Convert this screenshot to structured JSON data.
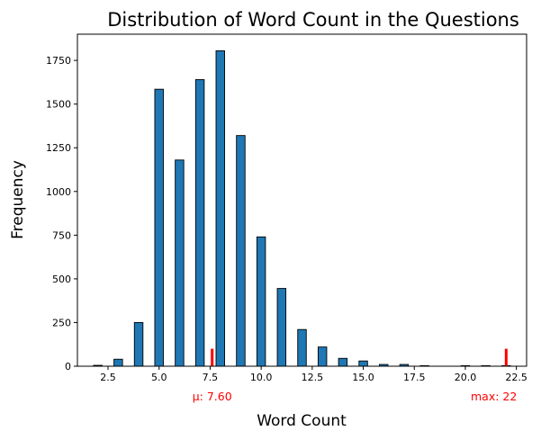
{
  "chart_data": {
    "type": "bar",
    "title": "Distribution of Word Count in the Questions",
    "xlabel": "Word Count",
    "ylabel": "Frequency",
    "xlim": [
      1.0,
      23.0
    ],
    "ylim": [
      0,
      1900
    ],
    "xticks": [
      2.5,
      5.0,
      7.5,
      10.0,
      12.5,
      15.0,
      17.5,
      20.0,
      22.5
    ],
    "xtick_labels": [
      "2.5",
      "5.0",
      "7.5",
      "10.0",
      "12.5",
      "15.0",
      "17.5",
      "20.0",
      "22.5"
    ],
    "yticks": [
      0,
      250,
      500,
      750,
      1000,
      1250,
      1500,
      1750
    ],
    "ytick_labels": [
      "0",
      "250",
      "500",
      "750",
      "1000",
      "1250",
      "1500",
      "1750"
    ],
    "bar_width": 0.42,
    "x": [
      2,
      3,
      4,
      5,
      6,
      7,
      8,
      9,
      10,
      11,
      12,
      13,
      14,
      15,
      16,
      17,
      18,
      20,
      21,
      22
    ],
    "values": [
      5,
      40,
      250,
      1585,
      1180,
      1640,
      1805,
      1320,
      740,
      445,
      210,
      110,
      45,
      30,
      10,
      10,
      3,
      3,
      3,
      3
    ],
    "bar_color": "#1f77b4",
    "edge_color": "#000000",
    "grid": false,
    "annotations": [
      {
        "label": "μ: 7.60",
        "x": 7.6,
        "value": 100,
        "color": "#ff0000"
      },
      {
        "label": "max: 22",
        "x": 22,
        "value": 100,
        "color": "#ff0000"
      }
    ]
  }
}
